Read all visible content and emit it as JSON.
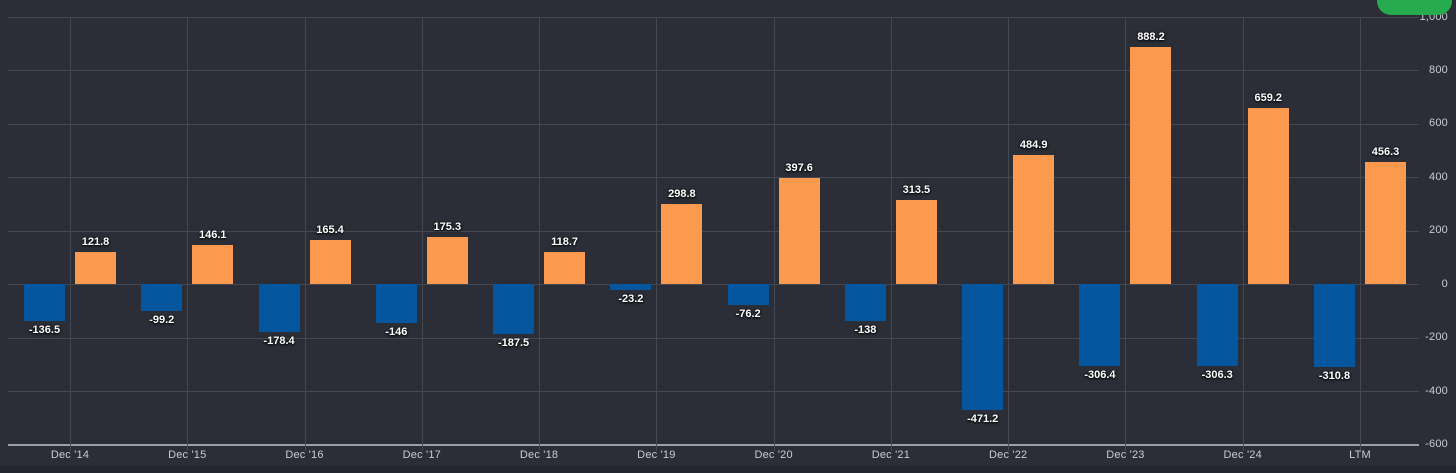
{
  "chart_data": {
    "type": "bar",
    "title": "",
    "xlabel": "",
    "ylabel": "",
    "categories": [
      "Dec '14",
      "Dec '15",
      "Dec '16",
      "Dec '17",
      "Dec '18",
      "Dec '19",
      "Dec '20",
      "Dec '21",
      "Dec '22",
      "Dec '23",
      "Dec '24",
      "LTM"
    ],
    "series": [
      {
        "name": "negative-values",
        "color": "#04569e",
        "values": [
          -136.5,
          -99.2,
          -178.4,
          -146,
          -187.5,
          -23.2,
          -76.2,
          -138,
          -471.2,
          -306.4,
          -306.3,
          -310.8
        ],
        "labels": [
          "-136.5",
          "-99.2",
          "-178.4",
          "-146",
          "-187.5",
          "-23.2",
          "-76.2",
          "-138",
          "-471.2",
          "-306.4",
          "-306.3",
          "-310.8"
        ]
      },
      {
        "name": "positive-values",
        "color": "#fb9a4f",
        "values": [
          121.8,
          146.1,
          165.4,
          175.3,
          118.7,
          298.8,
          397.6,
          313.5,
          484.9,
          888.2,
          659.2,
          456.3
        ],
        "labels": [
          "121.8",
          "146.1",
          "165.4",
          "175.3",
          "118.7",
          "298.8",
          "397.6",
          "313.5",
          "484.9",
          "888.2",
          "659.2",
          "456.3"
        ]
      }
    ],
    "ylim": [
      -600,
      1000
    ],
    "ytick_step": 200,
    "ytick_values": [
      1000,
      800,
      600,
      400,
      200,
      0,
      -200,
      -400,
      -600
    ],
    "ytick_labels": [
      "1,000",
      "800",
      "600",
      "400",
      "200",
      "0",
      "-200",
      "-400",
      "-600"
    ],
    "y_axis_side": "right",
    "grid": "on",
    "legend": "none",
    "value_labels": "on"
  },
  "colors": {
    "background": "#2b2d37",
    "gridline": "#454852",
    "axis_line": "#9aa0a8",
    "tick_text": "#c9ccd2",
    "value_text": "#ffffff",
    "positive_bar": "#fb9a4f",
    "negative_bar": "#04569e",
    "green_button": "#27ab4f"
  },
  "toolbar": {
    "green_button_label": ""
  }
}
